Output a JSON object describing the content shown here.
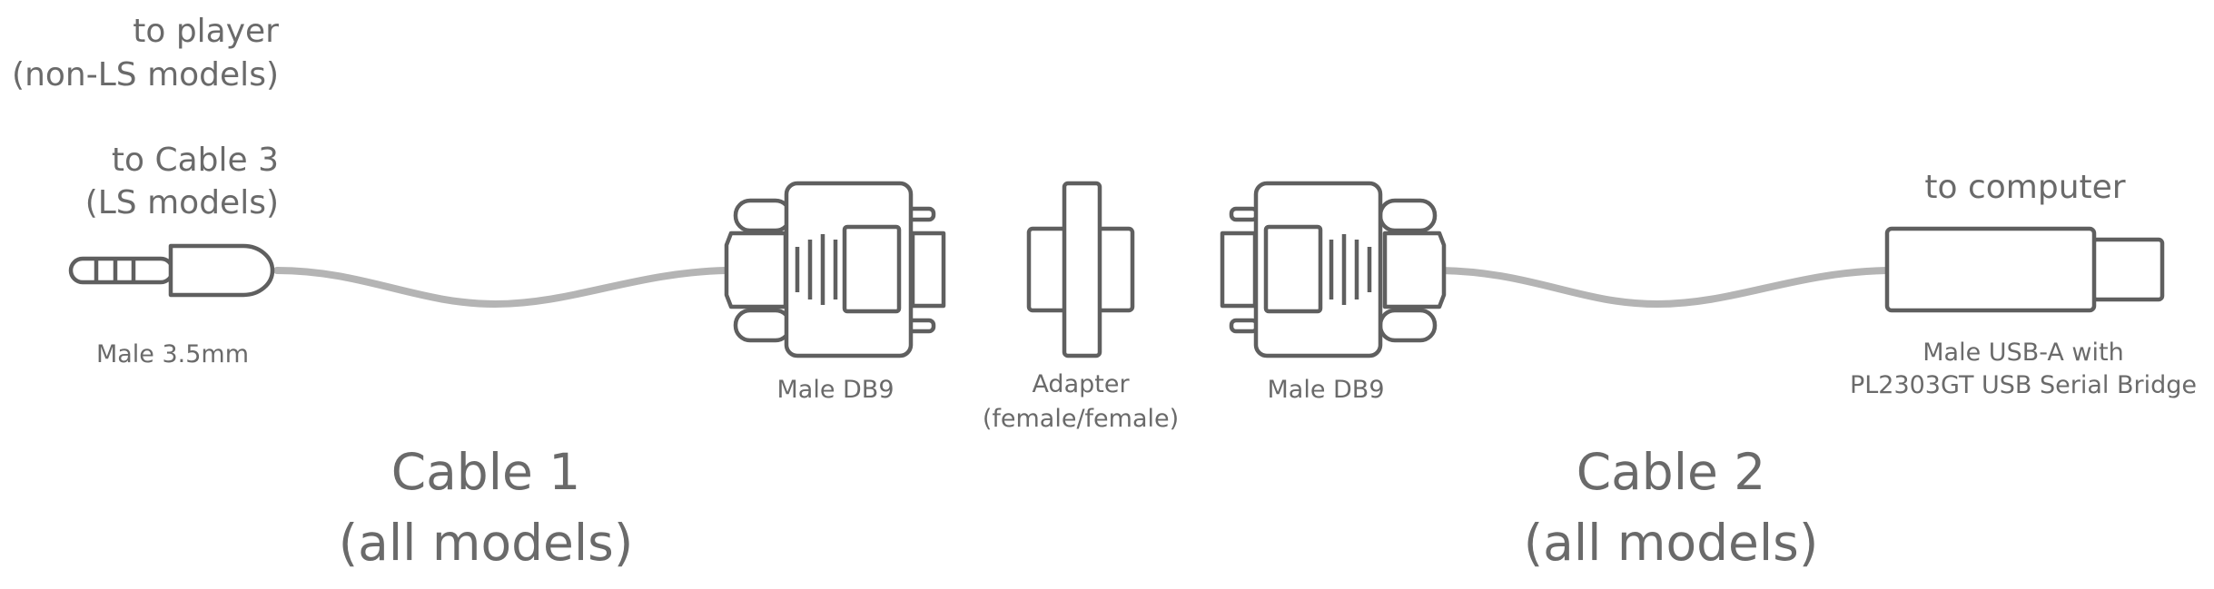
{
  "labels": {
    "to_player": "to player",
    "non_ls_models": "(non-LS models)",
    "to_cable_3": "to Cable 3",
    "ls_models": "(LS models)",
    "male_35mm": "Male 3.5mm",
    "male_db9_left": "Male DB9",
    "adapter": "Adapter",
    "adapter_type": "(female/female)",
    "male_db9_right": "Male DB9",
    "to_computer": "to computer",
    "usb_line1": "Male USB-A with",
    "usb_line2": "PL2303GT USB Serial Bridge",
    "cable1_title": "Cable 1",
    "cable1_sub": "(all models)",
    "cable2_title": "Cable 2",
    "cable2_sub": "(all models)"
  },
  "colors": {
    "outline": "#5f5f5f",
    "cable": "#b4b4b4",
    "text": "#6a6a6a"
  },
  "icons": [
    "audio-jack-35mm-icon",
    "db9-male-connector-icon",
    "db9-adapter-icon",
    "usb-a-plug-icon"
  ]
}
